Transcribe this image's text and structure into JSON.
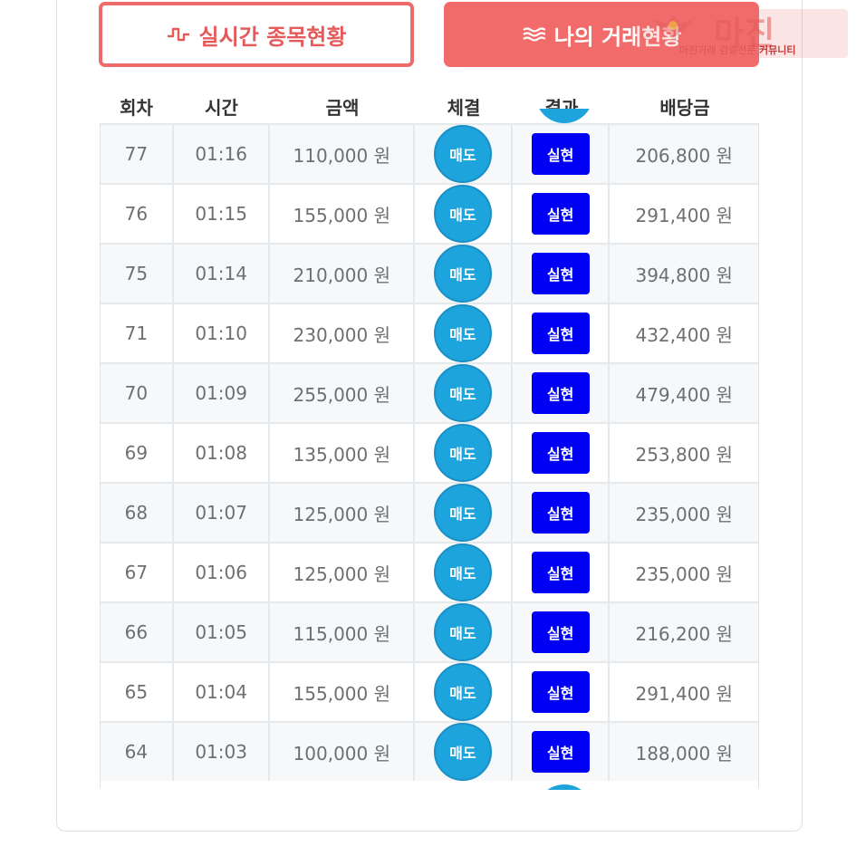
{
  "buttons": {
    "realtime": "실시간 종목현황",
    "my_trades": "나의 거래현황"
  },
  "watermark": {
    "brand": "마진",
    "sub_prefix": "마진거래 검증전문",
    "sub_bold": "커뮤니티"
  },
  "table": {
    "headers": [
      "회차",
      "시간",
      "금액",
      "체결",
      "결과",
      "배당금"
    ],
    "rows": [
      {
        "round": "77",
        "time": "01:16",
        "amount": "110,000 원",
        "exec": "매도",
        "result": "실현",
        "payout": "206,800 원"
      },
      {
        "round": "76",
        "time": "01:15",
        "amount": "155,000 원",
        "exec": "매도",
        "result": "실현",
        "payout": "291,400 원"
      },
      {
        "round": "75",
        "time": "01:14",
        "amount": "210,000 원",
        "exec": "매도",
        "result": "실현",
        "payout": "394,800 원"
      },
      {
        "round": "71",
        "time": "01:10",
        "amount": "230,000 원",
        "exec": "매도",
        "result": "실현",
        "payout": "432,400 원"
      },
      {
        "round": "70",
        "time": "01:09",
        "amount": "255,000 원",
        "exec": "매도",
        "result": "실현",
        "payout": "479,400 원"
      },
      {
        "round": "69",
        "time": "01:08",
        "amount": "135,000 원",
        "exec": "매도",
        "result": "실현",
        "payout": "253,800 원"
      },
      {
        "round": "68",
        "time": "01:07",
        "amount": "125,000 원",
        "exec": "매도",
        "result": "실현",
        "payout": "235,000 원"
      },
      {
        "round": "67",
        "time": "01:06",
        "amount": "125,000 원",
        "exec": "매도",
        "result": "실현",
        "payout": "235,000 원"
      },
      {
        "round": "66",
        "time": "01:05",
        "amount": "115,000 원",
        "exec": "매도",
        "result": "실현",
        "payout": "216,200 원"
      },
      {
        "round": "65",
        "time": "01:04",
        "amount": "155,000 원",
        "exec": "매도",
        "result": "실현",
        "payout": "291,400 원"
      },
      {
        "round": "64",
        "time": "01:03",
        "amount": "100,000 원",
        "exec": "매도",
        "result": "실현",
        "payout": "188,000 원"
      }
    ]
  },
  "colors": {
    "accent": "#f16b6b",
    "exec_badge": "#1ea4dc",
    "result_badge": "#0000f5"
  },
  "icons": {
    "realtime": "pulse-wave-icon",
    "my_trades": "triple-wave-icon"
  }
}
